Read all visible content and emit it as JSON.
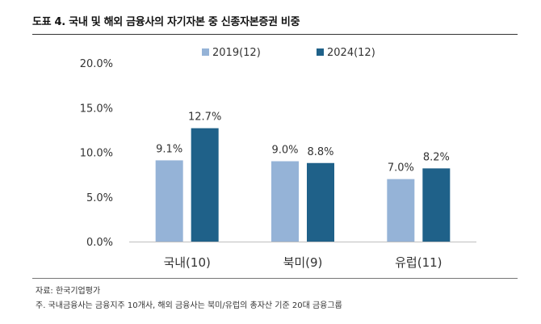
{
  "title": "도표 4. 국내 및 해외 금융사의 자기자본 중 신종자본증권 비중",
  "source": "자료: 한국기업평가",
  "note": "주. 국내금융사는 금융지주 10개사, 해외 금융사는 북미/유럽의 총자산 기준 20대 금융그룹",
  "chart_data": {
    "type": "bar",
    "categories": [
      "국내(10)",
      "북미(9)",
      "유럽(11)"
    ],
    "series": [
      {
        "name": "2019(12)",
        "color": "#95B3D7",
        "values": [
          9.1,
          9.0,
          7.0
        ],
        "labels": [
          "9.1%",
          "9.0%",
          "7.0%"
        ]
      },
      {
        "name": "2024(12)",
        "color": "#1F6189",
        "values": [
          12.7,
          8.8,
          8.2
        ],
        "labels": [
          "12.7%",
          "8.8%",
          "8.2%"
        ]
      }
    ],
    "yticks": [
      "0.0%",
      "5.0%",
      "10.0%",
      "15.0%",
      "20.0%"
    ],
    "ylim": [
      0,
      20
    ],
    "grid": false,
    "legend": "top"
  }
}
